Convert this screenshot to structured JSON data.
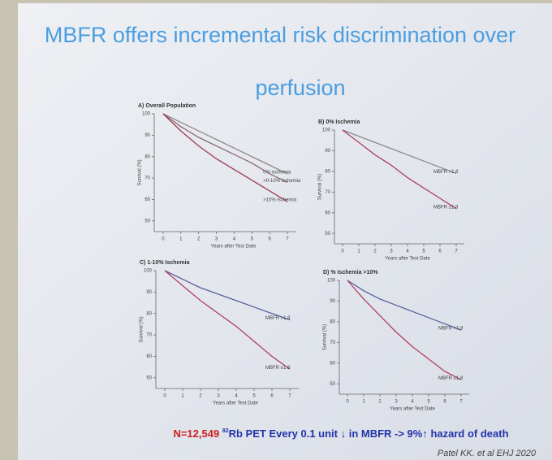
{
  "slide": {
    "title_lines": [
      "MBFR offers incremental risk discrimination over",
      "perfusion"
    ],
    "footnote": [
      "N=12,549 ",
      "82",
      "Rb PET Every 0.1 unit ↓ in MBFR -> 9%↑ hazard of death"
    ],
    "citation": "Patel KK. et al EHJ 2020"
  },
  "chart_data": [
    {
      "type": "line",
      "title": "A) Overall Population",
      "xlabel": "Years after Test Date",
      "ylabel": "Survival (%)",
      "x": [
        0,
        1,
        2,
        3,
        4,
        5,
        6,
        7
      ],
      "xlim": [
        -0.5,
        7.5
      ],
      "xticks": [
        0,
        1,
        2,
        3,
        4,
        5,
        6,
        7
      ],
      "ylim": [
        45,
        100
      ],
      "yticks": [
        50,
        60,
        70,
        80,
        90,
        100
      ],
      "series": [
        {
          "name": "0% ischemia",
          "color": "#8a8a8a",
          "values": [
            100,
            96,
            92,
            88,
            84,
            80,
            76,
            72
          ]
        },
        {
          "name": ">0-10% ischemia",
          "color": "#8a6a70",
          "values": [
            100,
            94,
            89,
            85,
            81,
            77,
            72,
            68
          ]
        },
        {
          "name": ">10% ischemia",
          "color": "#9a3a50",
          "values": [
            100,
            92,
            85,
            79,
            74,
            69,
            64,
            59
          ]
        }
      ]
    },
    {
      "type": "line",
      "title": "B) 0% Ischemia",
      "xlabel": "Years after Test Date",
      "ylabel": "Survival (%)",
      "x": [
        0,
        1,
        2,
        3,
        4,
        5,
        6,
        7
      ],
      "xlim": [
        -0.5,
        7.5
      ],
      "xticks": [
        0,
        1,
        2,
        3,
        4,
        5,
        6,
        7
      ],
      "ylim": [
        45,
        100
      ],
      "yticks": [
        50,
        60,
        70,
        80,
        90,
        100
      ],
      "series": [
        {
          "name": "MBFR >1.8",
          "color": "#8a8a8a",
          "values": [
            100,
            97,
            94,
            91,
            88,
            85,
            82,
            79
          ]
        },
        {
          "name": "MBFR ≤1.8",
          "color": "#a8405a",
          "values": [
            100,
            94,
            88,
            83,
            77,
            72,
            67,
            62
          ]
        }
      ]
    },
    {
      "type": "line",
      "title": "C) 1-10% Ischemia",
      "xlabel": "Years after Test Date",
      "ylabel": "Survival (%)",
      "x": [
        0,
        1,
        2,
        3,
        4,
        5,
        6,
        7
      ],
      "xlim": [
        -0.5,
        7.5
      ],
      "xticks": [
        0,
        1,
        2,
        3,
        4,
        5,
        6,
        7
      ],
      "ylim": [
        45,
        100
      ],
      "yticks": [
        50,
        60,
        70,
        80,
        90,
        100
      ],
      "series": [
        {
          "name": "MBFR >1.8",
          "color": "#5560a0",
          "values": [
            100,
            96,
            92,
            89,
            86,
            83,
            80,
            77
          ]
        },
        {
          "name": "MBFR ≤1.8",
          "color": "#b04060",
          "values": [
            100,
            93,
            86,
            80,
            74,
            67,
            60,
            54
          ]
        }
      ]
    },
    {
      "type": "line",
      "title": "D) % Ischemia >10%",
      "xlabel": "Years after Test Date",
      "ylabel": "Survival (%)",
      "x": [
        0,
        1,
        2,
        3,
        4,
        5,
        6,
        7
      ],
      "xlim": [
        -0.5,
        7.5
      ],
      "xticks": [
        0,
        1,
        2,
        3,
        4,
        5,
        6,
        7
      ],
      "ylim": [
        45,
        100
      ],
      "yticks": [
        50,
        60,
        70,
        80,
        90,
        100
      ],
      "series": [
        {
          "name": "MBFR >1.8",
          "color": "#5560a0",
          "values": [
            100,
            95,
            91,
            88,
            85,
            82,
            79,
            76
          ]
        },
        {
          "name": "MBFR ≤1.8",
          "color": "#b04060",
          "values": [
            100,
            91,
            83,
            75,
            68,
            62,
            56,
            52
          ]
        }
      ]
    }
  ]
}
